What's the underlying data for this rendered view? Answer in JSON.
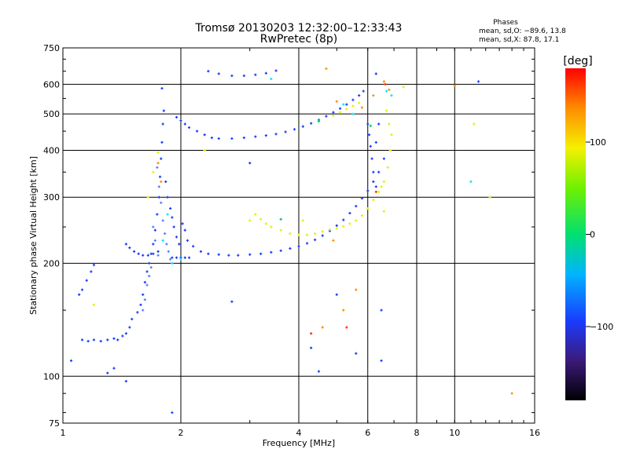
{
  "header": {
    "title": "Tromsø 20130203 12:32:00–12:33:43",
    "subtitle": "RwPretec (8p)",
    "phases_title": "Phases",
    "phases_o": "mean, sd,O: −89.6, 13.8",
    "phases_x": "mean, sd,X:  87.8, 17.1"
  },
  "colorbar": {
    "label": "[deg]",
    "ticks": [
      {
        "value": 100,
        "label": "100"
      },
      {
        "value": 0,
        "label": "0"
      },
      {
        "value": -100,
        "label": "−100"
      }
    ],
    "range": [
      -180,
      180
    ]
  },
  "chart_data": {
    "type": "scatter",
    "title": "Tromsø 20130203 12:32:00–12:33:43",
    "subtitle": "RwPretec (8p)",
    "xlabel": "Frequency [MHz]",
    "ylabel": "Stationary phase Virtual Height [km]",
    "xscale": "log",
    "yscale": "log",
    "xlim": [
      1,
      16
    ],
    "ylim": [
      75,
      750
    ],
    "xticks": [
      {
        "value": 1,
        "label": "1"
      },
      {
        "value": 2,
        "label": "2"
      },
      {
        "value": 4,
        "label": "4"
      },
      {
        "value": 6,
        "label": "6"
      },
      {
        "value": 8,
        "label": "8"
      },
      {
        "value": 10,
        "label": "10"
      },
      {
        "value": 16,
        "label": "16"
      }
    ],
    "yticks": [
      {
        "value": 75,
        "label": "75"
      },
      {
        "value": 100,
        "label": "100"
      },
      {
        "value": 200,
        "label": "200"
      },
      {
        "value": 300,
        "label": "300"
      },
      {
        "value": 400,
        "label": "400"
      },
      {
        "value": 500,
        "label": "500"
      },
      {
        "value": 600,
        "label": "600"
      },
      {
        "value": 750,
        "label": "750"
      }
    ],
    "grid": true,
    "color_encoding": "phase [deg]",
    "series": [
      {
        "color": "#1a3cff",
        "points": [
          [
            1.05,
            110
          ],
          [
            1.1,
            165
          ],
          [
            1.12,
            170
          ],
          [
            1.15,
            180
          ],
          [
            1.18,
            190
          ],
          [
            1.2,
            198
          ],
          [
            1.12,
            125
          ],
          [
            1.16,
            124
          ],
          [
            1.2,
            125
          ],
          [
            1.25,
            124
          ],
          [
            1.3,
            125
          ],
          [
            1.35,
            126
          ],
          [
            1.38,
            125
          ],
          [
            1.42,
            128
          ],
          [
            1.45,
            130
          ],
          [
            1.48,
            135
          ],
          [
            1.5,
            142
          ],
          [
            1.3,
            102
          ],
          [
            1.35,
            105
          ],
          [
            1.55,
            148
          ],
          [
            1.58,
            155
          ],
          [
            1.6,
            165
          ],
          [
            1.62,
            178
          ],
          [
            1.64,
            190
          ],
          [
            1.66,
            200
          ],
          [
            1.68,
            212
          ],
          [
            1.7,
            225
          ],
          [
            1.72,
            245
          ],
          [
            1.74,
            270
          ],
          [
            1.76,
            300
          ],
          [
            1.77,
            340
          ],
          [
            1.78,
            380
          ],
          [
            1.79,
            420
          ],
          [
            1.8,
            470
          ],
          [
            1.81,
            510
          ],
          [
            1.79,
            585
          ],
          [
            1.83,
            330
          ],
          [
            1.85,
            300
          ],
          [
            1.88,
            280
          ],
          [
            1.9,
            265
          ],
          [
            1.92,
            250
          ],
          [
            1.95,
            235
          ],
          [
            1.98,
            225
          ],
          [
            2.02,
            255
          ],
          [
            2.05,
            245
          ],
          [
            2.08,
            230
          ],
          [
            1.45,
            225
          ],
          [
            1.48,
            220
          ],
          [
            1.52,
            215
          ],
          [
            1.56,
            212
          ],
          [
            1.6,
            210
          ],
          [
            1.65,
            210
          ],
          [
            1.7,
            212
          ],
          [
            1.75,
            215
          ],
          [
            1.9,
            207
          ],
          [
            1.95,
            207
          ],
          [
            2.0,
            207
          ],
          [
            2.05,
            207
          ],
          [
            2.1,
            207
          ],
          [
            2.15,
            222
          ],
          [
            2.25,
            215
          ],
          [
            2.35,
            212
          ],
          [
            2.5,
            211
          ],
          [
            2.65,
            210
          ],
          [
            2.8,
            210
          ],
          [
            3.0,
            211
          ],
          [
            3.2,
            212
          ],
          [
            3.4,
            214
          ],
          [
            3.6,
            216
          ],
          [
            3.8,
            219
          ],
          [
            4.0,
            222
          ],
          [
            4.2,
            226
          ],
          [
            4.4,
            231
          ],
          [
            4.6,
            237
          ],
          [
            4.8,
            244
          ],
          [
            5.0,
            252
          ],
          [
            5.2,
            261
          ],
          [
            5.4,
            272
          ],
          [
            5.6,
            284
          ],
          [
            5.8,
            298
          ],
          [
            6.0,
            312
          ],
          [
            6.2,
            330
          ],
          [
            6.4,
            350
          ],
          [
            6.6,
            380
          ],
          [
            1.95,
            490
          ],
          [
            2.0,
            480
          ],
          [
            2.05,
            470
          ],
          [
            2.1,
            460
          ],
          [
            2.2,
            450
          ],
          [
            2.3,
            440
          ],
          [
            2.4,
            432
          ],
          [
            2.5,
            430
          ],
          [
            2.7,
            430
          ],
          [
            2.9,
            432
          ],
          [
            3.1,
            435
          ],
          [
            3.3,
            438
          ],
          [
            3.5,
            442
          ],
          [
            3.7,
            448
          ],
          [
            3.9,
            455
          ],
          [
            4.1,
            463
          ],
          [
            4.3,
            472
          ],
          [
            4.5,
            482
          ],
          [
            4.7,
            493
          ],
          [
            4.9,
            505
          ],
          [
            5.1,
            517
          ],
          [
            5.3,
            530
          ],
          [
            5.5,
            545
          ],
          [
            5.7,
            560
          ],
          [
            5.85,
            575
          ],
          [
            2.35,
            650
          ],
          [
            2.5,
            640
          ],
          [
            2.7,
            632
          ],
          [
            2.9,
            632
          ],
          [
            3.1,
            636
          ],
          [
            3.3,
            642
          ],
          [
            3.5,
            652
          ],
          [
            6.0,
            470
          ],
          [
            6.05,
            440
          ],
          [
            6.1,
            410
          ],
          [
            6.15,
            380
          ],
          [
            6.2,
            350
          ],
          [
            6.3,
            420
          ],
          [
            6.4,
            470
          ],
          [
            6.3,
            320
          ],
          [
            2.7,
            158
          ],
          [
            4.3,
            119
          ],
          [
            4.5,
            103
          ],
          [
            5.0,
            165
          ],
          [
            6.5,
            110
          ],
          [
            6.5,
            150
          ],
          [
            1.45,
            97
          ],
          [
            1.9,
            80
          ],
          [
            3.0,
            370
          ],
          [
            6.3,
            640
          ],
          [
            11.5,
            610
          ],
          [
            5.6,
            115
          ]
        ]
      },
      {
        "color": "#5a7cff",
        "points": [
          [
            1.74,
            360
          ],
          [
            1.76,
            320
          ],
          [
            1.78,
            290
          ],
          [
            1.8,
            260
          ],
          [
            1.82,
            240
          ],
          [
            1.84,
            225
          ],
          [
            1.86,
            215
          ],
          [
            1.88,
            205
          ],
          [
            1.7,
            250
          ],
          [
            1.72,
            230
          ],
          [
            1.75,
            210
          ],
          [
            1.68,
            195
          ],
          [
            1.66,
            185
          ],
          [
            1.64,
            175
          ],
          [
            1.62,
            160
          ],
          [
            1.6,
            150
          ]
        ]
      },
      {
        "color": "#00e5ff",
        "points": [
          [
            1.8,
            230
          ],
          [
            1.85,
            270
          ],
          [
            1.9,
            200
          ],
          [
            2.0,
            205
          ],
          [
            4.5,
            480
          ],
          [
            5.2,
            530
          ],
          [
            5.5,
            500
          ],
          [
            6.7,
            575
          ],
          [
            6.9,
            560
          ],
          [
            11.0,
            330
          ],
          [
            3.4,
            620
          ]
        ]
      },
      {
        "color": "#e6f000",
        "points": [
          [
            3.1,
            270
          ],
          [
            3.2,
            262
          ],
          [
            3.3,
            255
          ],
          [
            3.4,
            250
          ],
          [
            3.6,
            245
          ],
          [
            3.8,
            240
          ],
          [
            4.0,
            238
          ],
          [
            4.2,
            238
          ],
          [
            4.4,
            240
          ],
          [
            4.6,
            243
          ],
          [
            4.8,
            246
          ],
          [
            5.0,
            248
          ],
          [
            5.2,
            251
          ],
          [
            5.4,
            255
          ],
          [
            5.6,
            260
          ],
          [
            5.8,
            268
          ],
          [
            6.0,
            280
          ],
          [
            6.2,
            295
          ],
          [
            6.4,
            310
          ],
          [
            6.6,
            330
          ],
          [
            6.75,
            360
          ],
          [
            6.85,
            400
          ],
          [
            6.9,
            440
          ],
          [
            4.9,
            495
          ],
          [
            5.1,
            505
          ],
          [
            5.3,
            515
          ],
          [
            5.5,
            525
          ],
          [
            5.7,
            535
          ],
          [
            6.7,
            510
          ],
          [
            6.8,
            470
          ],
          [
            6.6,
            275
          ],
          [
            6.5,
            320
          ],
          [
            1.65,
            300
          ],
          [
            1.7,
            350
          ],
          [
            1.75,
            395
          ],
          [
            1.2,
            155
          ],
          [
            2.3,
            400
          ],
          [
            3.0,
            260
          ],
          [
            4.1,
            260
          ],
          [
            11.2,
            470
          ],
          [
            12.3,
            300
          ],
          [
            7.4,
            590
          ]
        ]
      },
      {
        "color": "#ff8c00",
        "points": [
          [
            1.75,
            370
          ],
          [
            1.78,
            330
          ],
          [
            4.7,
            660
          ],
          [
            5.0,
            540
          ],
          [
            5.8,
            520
          ],
          [
            6.2,
            560
          ],
          [
            6.6,
            610
          ],
          [
            5.6,
            170
          ],
          [
            4.9,
            230
          ],
          [
            5.2,
            150
          ],
          [
            10.0,
            595
          ],
          [
            14.0,
            90
          ],
          [
            4.6,
            135
          ],
          [
            6.8,
            580
          ]
        ]
      },
      {
        "color": "#ff2d00",
        "points": [
          [
            6.65,
            600
          ],
          [
            6.3,
            310
          ],
          [
            5.3,
            135
          ],
          [
            4.3,
            130
          ]
        ]
      },
      {
        "color": "#00c853",
        "points": [
          [
            3.6,
            262
          ],
          [
            4.5,
            478
          ],
          [
            6.1,
            465
          ]
        ]
      }
    ]
  }
}
